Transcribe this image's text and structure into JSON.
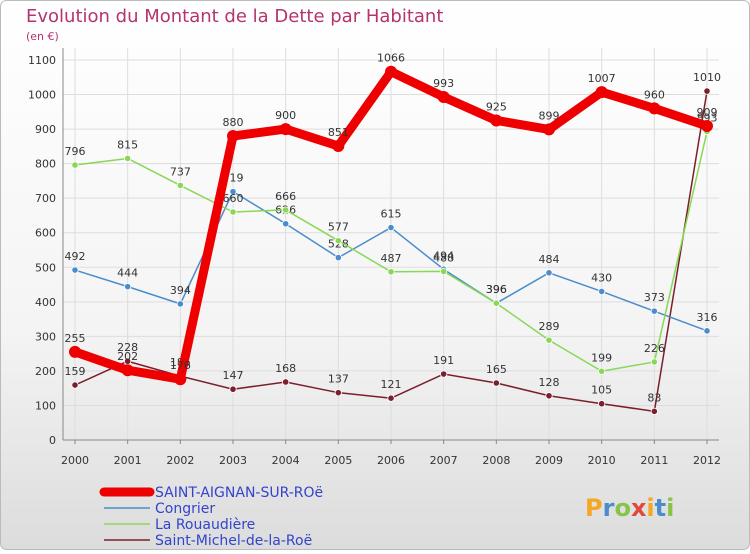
{
  "chart_data": {
    "type": "line",
    "title": "Evolution du Montant de la Dette par Habitant",
    "subtitle": "(en €)",
    "xlabel": "",
    "ylabel": "",
    "ylim": [
      0,
      1100
    ],
    "yticks": [
      0,
      100,
      200,
      300,
      400,
      500,
      600,
      700,
      800,
      900,
      1000,
      1100
    ],
    "categories": [
      "2000",
      "2001",
      "2002",
      "2003",
      "2004",
      "2005",
      "2006",
      "2007",
      "2008",
      "2009",
      "2010",
      "2011",
      "2012"
    ],
    "grid": true,
    "series": [
      {
        "name": "Saint-Michel-de-la-Roë",
        "color": "#7a1f2b",
        "values": [
          159,
          228,
          185,
          147,
          168,
          137,
          121,
          191,
          165,
          128,
          105,
          83,
          1010
        ]
      },
      {
        "name": "Congrier",
        "color": "#4a8ccc",
        "values": [
          492,
          444,
          394,
          719,
          626,
          528,
          615,
          494,
          396,
          484,
          430,
          373,
          316
        ]
      },
      {
        "name": "La Rouaudière",
        "color": "#88d855",
        "values": [
          796,
          815,
          737,
          660,
          666,
          577,
          487,
          488,
          396,
          289,
          199,
          226,
          893
        ]
      },
      {
        "name": "SAINT-AIGNAN-SUR-ROë",
        "color": "#ee0000",
        "values": [
          255,
          202,
          176,
          880,
          900,
          851,
          1066,
          993,
          925,
          899,
          1007,
          960,
          909
        ]
      }
    ],
    "legend_order": [
      "SAINT-AIGNAN-SUR-ROë",
      "Congrier",
      "La Rouaudière",
      "Saint-Michel-de-la-Roë"
    ],
    "legend_position": "bottom-left"
  },
  "logo": {
    "text": "Proxiti"
  }
}
